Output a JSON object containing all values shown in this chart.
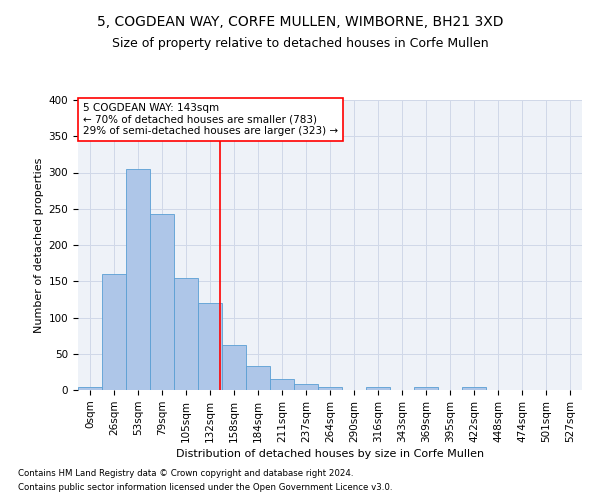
{
  "title": "5, COGDEAN WAY, CORFE MULLEN, WIMBORNE, BH21 3XD",
  "subtitle": "Size of property relative to detached houses in Corfe Mullen",
  "xlabel": "Distribution of detached houses by size in Corfe Mullen",
  "ylabel": "Number of detached properties",
  "footnote1": "Contains HM Land Registry data © Crown copyright and database right 2024.",
  "footnote2": "Contains public sector information licensed under the Open Government Licence v3.0.",
  "bar_labels": [
    "0sqm",
    "26sqm",
    "53sqm",
    "79sqm",
    "105sqm",
    "132sqm",
    "158sqm",
    "184sqm",
    "211sqm",
    "237sqm",
    "264sqm",
    "290sqm",
    "316sqm",
    "343sqm",
    "369sqm",
    "395sqm",
    "422sqm",
    "448sqm",
    "474sqm",
    "501sqm",
    "527sqm"
  ],
  "bar_values": [
    4,
    160,
    305,
    243,
    155,
    120,
    62,
    33,
    15,
    8,
    4,
    0,
    4,
    0,
    4,
    0,
    4,
    0,
    0,
    0,
    0
  ],
  "bar_color": "#aec6e8",
  "bar_edge_color": "#5a9fd4",
  "vline_x": 5.42,
  "vline_color": "red",
  "annotation_text": "5 COGDEAN WAY: 143sqm\n← 70% of detached houses are smaller (783)\n29% of semi-detached houses are larger (323) →",
  "annotation_box_color": "white",
  "annotation_box_edgecolor": "red",
  "ylim": [
    0,
    400
  ],
  "yticks": [
    0,
    50,
    100,
    150,
    200,
    250,
    300,
    350,
    400
  ],
  "grid_color": "#d0d8e8",
  "bg_color": "#eef2f8",
  "title_fontsize": 10,
  "subtitle_fontsize": 9,
  "axis_label_fontsize": 8,
  "tick_fontsize": 7.5,
  "annotation_fontsize": 7.5
}
